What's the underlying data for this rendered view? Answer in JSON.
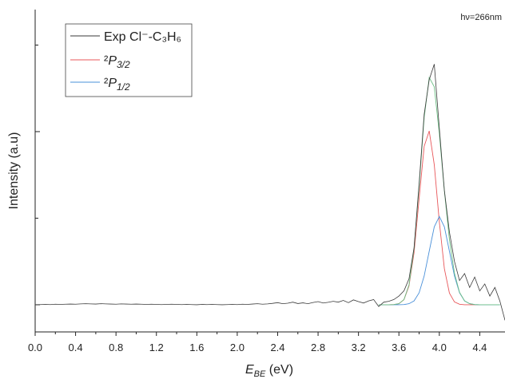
{
  "chart_data": {
    "type": "line",
    "annotation": "hν=266nm",
    "x_label": "EBE (eV)",
    "y_label": "Intensity (a.u)",
    "xlim": [
      0,
      4.65
    ],
    "ylim": [
      -0.157,
      1.705
    ],
    "xticks": [
      {
        "value": 0,
        "label": "0.0"
      },
      0.4,
      0.8,
      1.2,
      1.6,
      {
        "value": 2,
        "label": "2.0"
      },
      2.4,
      2.8,
      3.2,
      3.6,
      {
        "value": 4,
        "label": "4.0"
      },
      4.4
    ],
    "yticks": [
      0,
      0.5,
      1,
      1.5
    ],
    "legend": "top-left",
    "series": [
      {
        "name": "Exp Cl⁻-C₃H₆",
        "color": "#3a3a3a",
        "x": [
          0,
          0.05,
          0.1,
          0.15,
          0.2,
          0.25,
          0.3,
          0.35,
          0.4,
          0.45,
          0.5,
          0.55,
          0.6,
          0.65,
          0.7,
          0.75,
          0.8,
          0.85,
          0.9,
          0.95,
          1,
          1.05,
          1.1,
          1.15,
          1.2,
          1.25,
          1.3,
          1.35,
          1.4,
          1.45,
          1.5,
          1.55,
          1.6,
          1.65,
          1.7,
          1.75,
          1.8,
          1.85,
          1.9,
          1.95,
          2,
          2.05,
          2.1,
          2.15,
          2.2,
          2.25,
          2.3,
          2.35,
          2.4,
          2.45,
          2.5,
          2.55,
          2.6,
          2.65,
          2.7,
          2.75,
          2.8,
          2.85,
          2.9,
          2.95,
          3,
          3.05,
          3.1,
          3.15,
          3.2,
          3.25,
          3.3,
          3.35,
          3.4,
          3.45,
          3.5,
          3.55,
          3.6,
          3.65,
          3.7,
          3.75,
          3.8,
          3.85,
          3.9,
          3.95,
          4,
          4.05,
          4.1,
          4.15,
          4.2,
          4.25,
          4.3,
          4.35,
          4.4,
          4.45,
          4.5,
          4.55,
          4.6,
          4.65
        ],
        "values": [
          0,
          0.001,
          0.002,
          0.001,
          0.003,
          0.002,
          0.003,
          0.004,
          0.003,
          0.005,
          0.006,
          0.005,
          0.004,
          0.006,
          0.005,
          0.004,
          0.003,
          0.005,
          0.004,
          0.003,
          0.004,
          0.003,
          0.002,
          0.003,
          0.002,
          0.001,
          0.002,
          0.003,
          0.002,
          0.001,
          0.002,
          0.001,
          0,
          0.002,
          0.001,
          0.002,
          0.001,
          0,
          0.001,
          0.002,
          0.001,
          0.003,
          0.002,
          0.004,
          0.006,
          0.003,
          0.005,
          0.008,
          0.012,
          0.006,
          0.009,
          0.015,
          0.007,
          0.011,
          0.006,
          0.013,
          0.018,
          0.01,
          0.014,
          0.02,
          0.015,
          0.025,
          0.012,
          0.028,
          0.018,
          0.01,
          0.022,
          0.03,
          -0.01,
          0.015,
          0.02,
          0.03,
          0.05,
          0.08,
          0.15,
          0.33,
          0.7,
          1.1,
          1.3,
          1.39,
          1.02,
          0.66,
          0.42,
          0.25,
          0.14,
          0.18,
          0.1,
          0.16,
          0.08,
          0.12,
          0.05,
          0.1,
          0.02,
          -0.09
        ]
      },
      {
        "name": "²P3/2",
        "color": "#e8575a",
        "x": [
          3.4,
          3.45,
          3.5,
          3.55,
          3.6,
          3.65,
          3.7,
          3.75,
          3.8,
          3.85,
          3.9,
          3.95,
          4,
          4.05,
          4.1,
          4.15,
          4.2,
          4.25,
          4.3,
          4.35,
          4.4
        ],
        "values": [
          0,
          0,
          0,
          0.001,
          0.006,
          0.029,
          0.109,
          0.301,
          0.613,
          0.915,
          1.004,
          0.809,
          0.479,
          0.208,
          0.067,
          0.016,
          0.003,
          0,
          0,
          0,
          0
        ]
      },
      {
        "name": "²P1/2",
        "color": "#4a90d9",
        "x": [
          3.4,
          3.45,
          3.5,
          3.55,
          3.6,
          3.65,
          3.7,
          3.75,
          3.8,
          3.85,
          3.9,
          3.95,
          4,
          4.05,
          4.1,
          4.15,
          4.2,
          4.25,
          4.3,
          4.35,
          4.4,
          4.45,
          4.5,
          4.55,
          4.6
        ],
        "values": [
          0,
          0,
          0,
          0,
          0,
          0.001,
          0.006,
          0.022,
          0.069,
          0.166,
          0.309,
          0.45,
          0.51,
          0.45,
          0.309,
          0.166,
          0.069,
          0.022,
          0.006,
          0.001,
          0,
          0,
          0,
          0,
          0
        ]
      },
      {
        "color": "#6cbf84",
        "x": [
          3.4,
          3.45,
          3.5,
          3.55,
          3.6,
          3.65,
          3.7,
          3.75,
          3.8,
          3.85,
          3.9,
          3.95,
          4,
          4.05,
          4.1,
          4.15,
          4.2,
          4.25,
          4.3,
          4.35,
          4.4,
          4.45,
          4.5,
          4.55,
          4.6
        ],
        "values": [
          0,
          0,
          0,
          0.001,
          0.006,
          0.03,
          0.115,
          0.323,
          0.682,
          1.081,
          1.313,
          1.259,
          0.989,
          0.658,
          0.376,
          0.182,
          0.072,
          0.022,
          0.006,
          0.001,
          0,
          0,
          0,
          0,
          0
        ]
      }
    ]
  }
}
